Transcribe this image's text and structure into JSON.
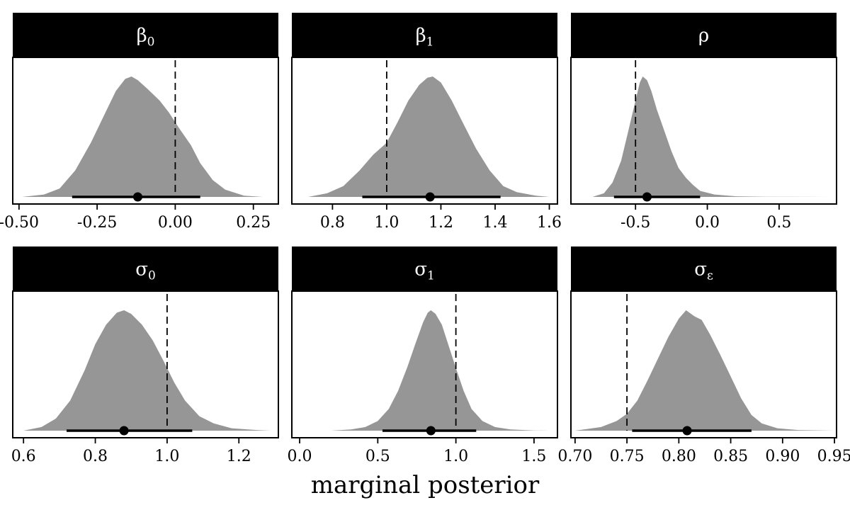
{
  "chart_data": {
    "type": "area",
    "xlabel": "marginal posterior",
    "ylabel": "",
    "grid": false,
    "panels": [
      {
        "title_base": "β",
        "title_sub": "0",
        "xlim": [
          -0.52,
          0.33
        ],
        "ticks": [
          "-0.50",
          "-0.25",
          "0.00",
          "0.25"
        ],
        "tick_values": [
          -0.5,
          -0.25,
          0.0,
          0.25
        ],
        "truth": 0.0,
        "point": -0.12,
        "interval": [
          -0.33,
          0.08
        ],
        "density": {
          "x": [
            -0.49,
            -0.42,
            -0.37,
            -0.32,
            -0.27,
            -0.22,
            -0.19,
            -0.16,
            -0.14,
            -0.12,
            -0.09,
            -0.05,
            -0.02,
            0.01,
            0.05,
            0.08,
            0.12,
            0.16,
            0.22,
            0.28
          ],
          "y": [
            0.0,
            0.02,
            0.07,
            0.22,
            0.45,
            0.72,
            0.88,
            0.98,
            1.0,
            0.97,
            0.9,
            0.8,
            0.7,
            0.58,
            0.43,
            0.28,
            0.14,
            0.06,
            0.01,
            0.0
          ]
        }
      },
      {
        "title_base": "β",
        "title_sub": "1",
        "xlim": [
          0.65,
          1.63
        ],
        "ticks": [
          "0.8",
          "1.0",
          "1.2",
          "1.4",
          "1.6"
        ],
        "tick_values": [
          0.8,
          1.0,
          1.2,
          1.4,
          1.6
        ],
        "truth": 1.0,
        "point": 1.16,
        "interval": [
          0.91,
          1.42
        ],
        "density": {
          "x": [
            0.71,
            0.78,
            0.84,
            0.9,
            0.95,
            1.0,
            1.04,
            1.08,
            1.12,
            1.15,
            1.17,
            1.2,
            1.24,
            1.28,
            1.33,
            1.38,
            1.43,
            1.48,
            1.55,
            1.6
          ],
          "y": [
            0.0,
            0.03,
            0.09,
            0.22,
            0.35,
            0.45,
            0.62,
            0.8,
            0.93,
            0.99,
            1.0,
            0.95,
            0.8,
            0.62,
            0.4,
            0.22,
            0.09,
            0.04,
            0.01,
            0.0
          ]
        }
      },
      {
        "title_base": "ρ",
        "title_sub": "",
        "xlim": [
          -0.95,
          0.9
        ],
        "ticks": [
          "-0.5",
          "0.0",
          "0.5"
        ],
        "tick_values": [
          -0.5,
          0.0,
          0.5
        ],
        "truth": -0.5,
        "point": -0.42,
        "interval": [
          -0.65,
          -0.05
        ],
        "density": {
          "x": [
            -0.8,
            -0.72,
            -0.66,
            -0.6,
            -0.55,
            -0.5,
            -0.47,
            -0.45,
            -0.42,
            -0.39,
            -0.35,
            -0.3,
            -0.25,
            -0.2,
            -0.15,
            -0.1,
            -0.05,
            0.05,
            0.2,
            0.4,
            0.85
          ],
          "y": [
            0.0,
            0.03,
            0.12,
            0.3,
            0.55,
            0.8,
            0.95,
            1.0,
            0.97,
            0.88,
            0.72,
            0.55,
            0.38,
            0.24,
            0.16,
            0.1,
            0.05,
            0.02,
            0.005,
            0.002,
            0.0
          ]
        }
      },
      {
        "title_base": "σ",
        "title_sub": "0",
        "xlim": [
          0.57,
          1.31
        ],
        "ticks": [
          "0.6",
          "0.8",
          "1.0",
          "1.2"
        ],
        "tick_values": [
          0.6,
          0.8,
          1.0,
          1.2
        ],
        "truth": 1.0,
        "point": 0.88,
        "interval": [
          0.72,
          1.07
        ],
        "density": {
          "x": [
            0.6,
            0.65,
            0.69,
            0.73,
            0.77,
            0.8,
            0.83,
            0.86,
            0.88,
            0.9,
            0.93,
            0.96,
            0.99,
            1.02,
            1.05,
            1.09,
            1.13,
            1.18,
            1.25,
            1.29
          ],
          "y": [
            0.0,
            0.03,
            0.1,
            0.25,
            0.5,
            0.72,
            0.88,
            0.98,
            1.0,
            0.97,
            0.88,
            0.75,
            0.58,
            0.4,
            0.25,
            0.12,
            0.06,
            0.02,
            0.005,
            0.0
          ]
        }
      },
      {
        "title_base": "σ",
        "title_sub": "1",
        "xlim": [
          -0.05,
          1.65
        ],
        "ticks": [
          "0.0",
          "0.5",
          "1.0",
          "1.5"
        ],
        "tick_values": [
          0.0,
          0.5,
          1.0,
          1.5
        ],
        "truth": 1.0,
        "point": 0.84,
        "interval": [
          0.53,
          1.13
        ],
        "density": {
          "x": [
            0.2,
            0.33,
            0.42,
            0.5,
            0.57,
            0.63,
            0.69,
            0.74,
            0.79,
            0.82,
            0.84,
            0.87,
            0.91,
            0.95,
            1.0,
            1.05,
            1.1,
            1.17,
            1.25,
            1.35,
            1.5,
            1.6
          ],
          "y": [
            0.0,
            0.01,
            0.03,
            0.08,
            0.18,
            0.33,
            0.53,
            0.72,
            0.9,
            0.98,
            1.0,
            0.97,
            0.88,
            0.72,
            0.52,
            0.33,
            0.18,
            0.08,
            0.03,
            0.01,
            0.002,
            0.0
          ]
        }
      },
      {
        "title_base": "σ",
        "title_sub": "ε",
        "xlim": [
          0.696,
          0.952
        ],
        "ticks": [
          "0.70",
          "0.75",
          "0.80",
          "0.85",
          "0.90",
          "0.95"
        ],
        "tick_values": [
          0.7,
          0.75,
          0.8,
          0.85,
          0.9,
          0.95
        ],
        "truth": 0.75,
        "point": 0.808,
        "interval": [
          0.755,
          0.87
        ],
        "density": {
          "x": [
            0.7,
            0.725,
            0.74,
            0.75,
            0.76,
            0.77,
            0.78,
            0.79,
            0.8,
            0.807,
            0.815,
            0.822,
            0.83,
            0.84,
            0.85,
            0.86,
            0.87,
            0.88,
            0.895,
            0.915,
            0.95
          ],
          "y": [
            0.0,
            0.03,
            0.08,
            0.14,
            0.25,
            0.42,
            0.6,
            0.78,
            0.93,
            1.0,
            0.95,
            0.92,
            0.8,
            0.63,
            0.45,
            0.27,
            0.13,
            0.06,
            0.02,
            0.005,
            0.0
          ]
        }
      }
    ]
  }
}
